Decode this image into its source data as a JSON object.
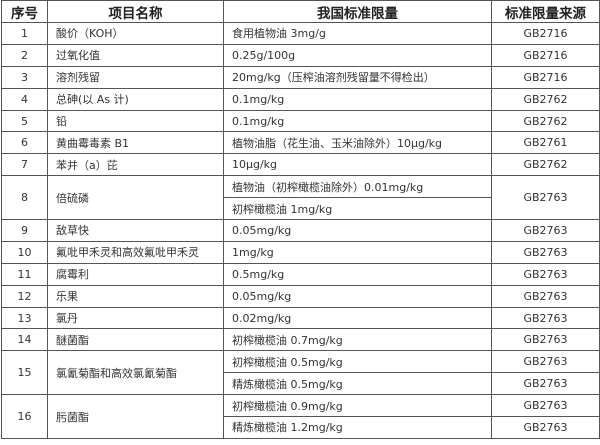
{
  "headers": [
    "序号",
    "项目名称",
    "我国标准限量",
    "标准限量来源"
  ],
  "rows": [
    {
      "no": "1",
      "name": "酸价（KOH）",
      "limits": [
        {
          "text": "食用植物油 3mg/g",
          "source": "GB2716"
        }
      ]
    },
    {
      "no": "2",
      "name": "过氧化值",
      "limits": [
        {
          "text": "0.25g/100g",
          "source": "GB2716"
        }
      ]
    },
    {
      "no": "3",
      "name": "溶剂残留",
      "limits": [
        {
          "text": "20mg/kg（压榨油溶剂残留量不得检出）",
          "source": "GB2716"
        }
      ]
    },
    {
      "no": "4",
      "name": "总砷(以 As 计)",
      "limits": [
        {
          "text": "0.1mg/kg",
          "source": "GB2762"
        }
      ]
    },
    {
      "no": "5",
      "name": "铅",
      "limits": [
        {
          "text": "0.1mg/kg",
          "source": "GB2762"
        }
      ]
    },
    {
      "no": "6",
      "name": "黄曲霉毒素 B1",
      "limits": [
        {
          "text": "植物油脂（花生油、玉米油除外）10μg/kg",
          "source": "GB2761"
        }
      ]
    },
    {
      "no": "7",
      "name": "苯并（a）芘",
      "limits": [
        {
          "text": "10μg/kg",
          "source": "GB2762"
        }
      ]
    },
    {
      "no": "8",
      "name": "倍硫磷",
      "shared_source": "GB2763",
      "limits": [
        {
          "text": "植物油（初榨橄榄油除外）0.01mg/kg"
        },
        {
          "text": "初榨橄榄油 1mg/kg"
        }
      ]
    },
    {
      "no": "9",
      "name": "敌草快",
      "limits": [
        {
          "text": "0.05mg/kg",
          "source": "GB2763"
        }
      ]
    },
    {
      "no": "10",
      "name": "氟吡甲禾灵和高效氟吡甲禾灵",
      "limits": [
        {
          "text": "1mg/kg",
          "source": "GB2763"
        }
      ]
    },
    {
      "no": "11",
      "name": "腐霉利",
      "limits": [
        {
          "text": "0.5mg/kg",
          "source": "GB2763"
        }
      ]
    },
    {
      "no": "12",
      "name": "乐果",
      "limits": [
        {
          "text": "0.05mg/kg",
          "source": "GB2763"
        }
      ]
    },
    {
      "no": "13",
      "name": "氯丹",
      "limits": [
        {
          "text": "0.02mg/kg",
          "source": "GB2763"
        }
      ]
    },
    {
      "no": "14",
      "name": "醚菌酯",
      "limits": [
        {
          "text": "初榨橄榄油 0.7mg/kg",
          "source": "GB2763"
        }
      ]
    },
    {
      "no": "15",
      "name": "氯氰菊酯和高效氯氰菊酯",
      "limits": [
        {
          "text": "初榨橄榄油 0.5mg/kg",
          "source": "GB2763"
        },
        {
          "text": "精炼橄榄油 0.5mg/kg",
          "source": "GB2763"
        }
      ]
    },
    {
      "no": "16",
      "name": "肟菌酯",
      "limits": [
        {
          "text": "初榨橄榄油 0.9mg/kg",
          "source": "GB2763"
        },
        {
          "text": "精炼橄榄油 1.2mg/kg",
          "source": "GB2763"
        }
      ]
    }
  ]
}
